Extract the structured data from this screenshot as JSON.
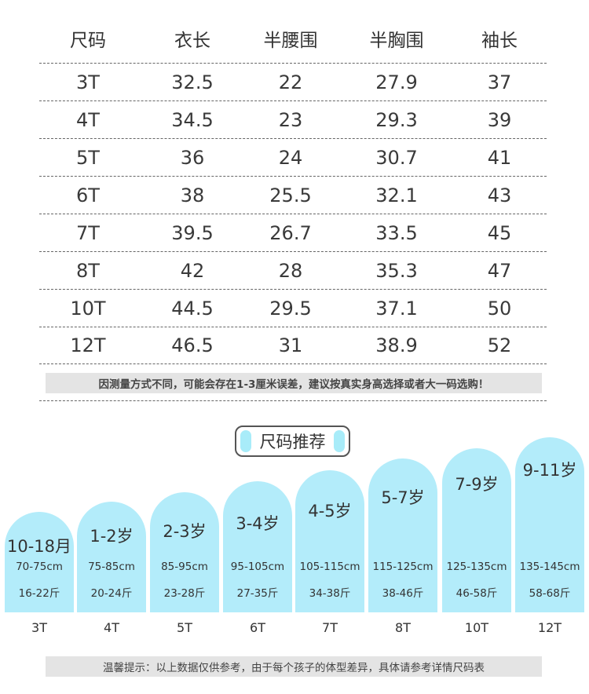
{
  "table": {
    "headers": [
      "尺码",
      "衣长",
      "半腰围",
      "半胸围",
      "袖长"
    ],
    "rows": [
      [
        "3T",
        "32.5",
        "22",
        "27.9",
        "37"
      ],
      [
        "4T",
        "34.5",
        "23",
        "29.3",
        "39"
      ],
      [
        "5T",
        "36",
        "24",
        "30.7",
        "41"
      ],
      [
        "6T",
        "38",
        "25.5",
        "32.1",
        "43"
      ],
      [
        "7T",
        "39.5",
        "26.7",
        "33.5",
        "45"
      ],
      [
        "8T",
        "42",
        "28",
        "35.3",
        "47"
      ],
      [
        "10T",
        "44.5",
        "29.5",
        "37.1",
        "50"
      ],
      [
        "12T",
        "46.5",
        "31",
        "38.9",
        "52"
      ]
    ]
  },
  "measure_note": "因测量方式不同，可能会存在1-3厘米误差，建议按真实身高选择或者大一码选购！",
  "recommend": {
    "title": "尺码推荐",
    "items": [
      {
        "size": "3T",
        "age": "10-18月",
        "height": "70-75cm",
        "weight": "16-22斤"
      },
      {
        "size": "4T",
        "age": "1-2岁",
        "height": "75-85cm",
        "weight": "20-24斤"
      },
      {
        "size": "5T",
        "age": "2-3岁",
        "height": "85-95cm",
        "weight": "23-28斤"
      },
      {
        "size": "6T",
        "age": "3-4岁",
        "height": "95-105cm",
        "weight": "27-35斤"
      },
      {
        "size": "7T",
        "age": "4-5岁",
        "height": "105-115cm",
        "weight": "34-38斤"
      },
      {
        "size": "8T",
        "age": "5-7岁",
        "height": "115-125cm",
        "weight": "38-46斤"
      },
      {
        "size": "10T",
        "age": "7-9岁",
        "height": "125-135cm",
        "weight": "46-58斤"
      },
      {
        "size": "12T",
        "age": "9-11岁",
        "height": "135-145cm",
        "weight": "58-68斤"
      }
    ]
  },
  "tip_note": "温馨提示：以上数据仅供参考，由于每个孩子的体型差异，具体请参考详情尺码表",
  "colors": {
    "column_fill": "#b3ecfa",
    "note_bg": "#e4e4e4",
    "pill": "#a8ecf9"
  }
}
